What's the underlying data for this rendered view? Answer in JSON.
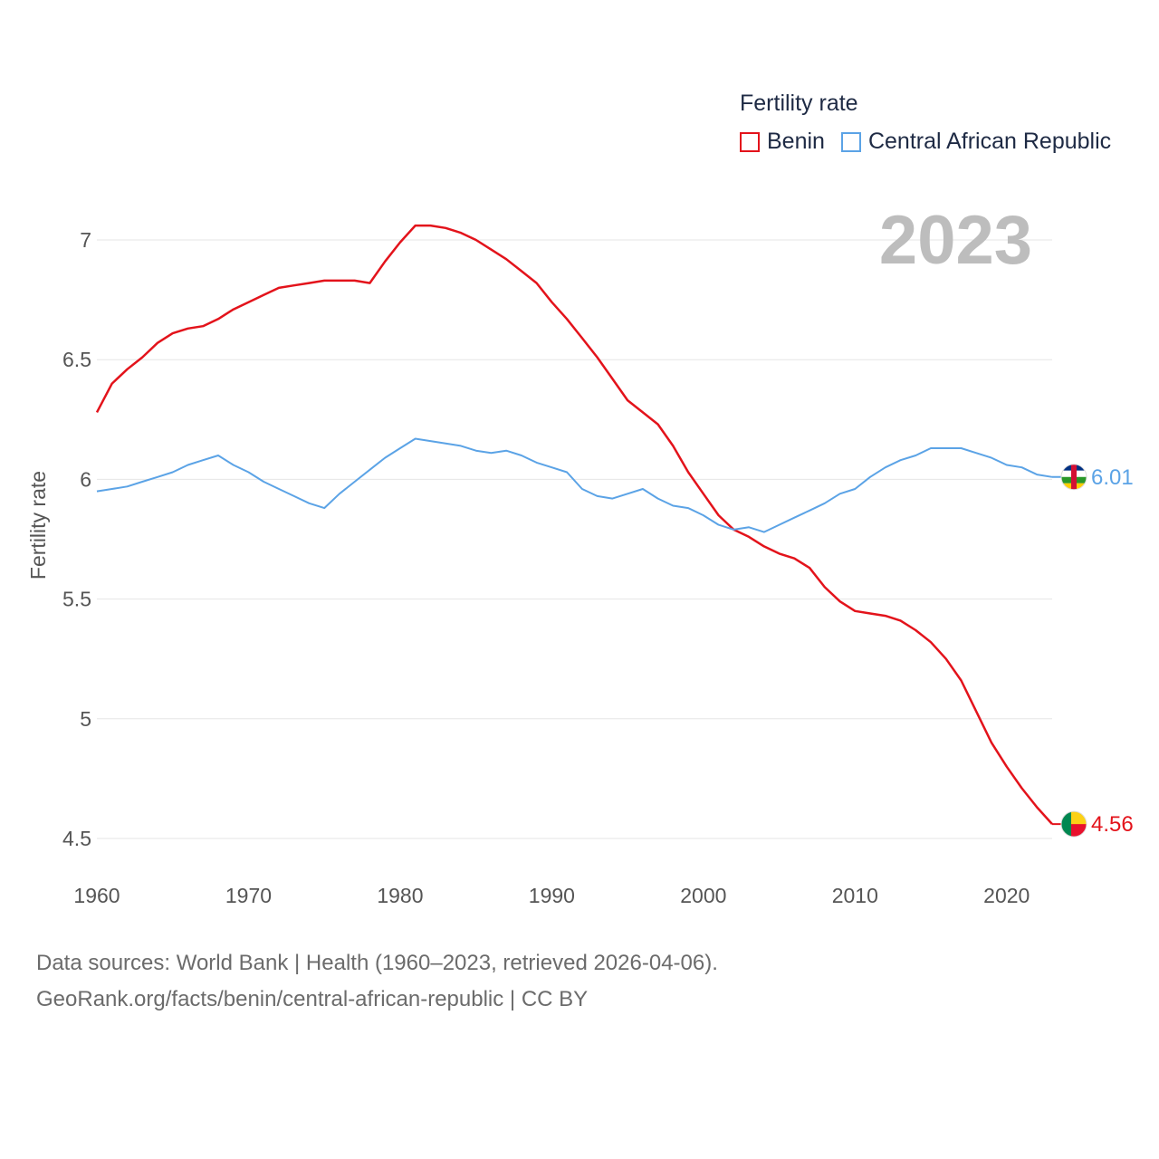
{
  "legend": {
    "title": "Fertility rate",
    "items": [
      {
        "label": "Benin",
        "color": "#e3131b"
      },
      {
        "label": "Central African Republic",
        "color": "#5ba3e6"
      }
    ]
  },
  "year_badge": "2023",
  "source": {
    "line1": "Data sources: World Bank | Health (1960–2023, retrieved 2026-04-06).",
    "line2": "GeoRank.org/facts/benin/central-african-republic | CC BY"
  },
  "chart_data": {
    "type": "line",
    "title": "Fertility rate",
    "xlabel": "",
    "ylabel": "Fertility rate",
    "xlim": [
      1960,
      2023
    ],
    "ylim": [
      4.45,
      7.2
    ],
    "x_ticks": [
      1960,
      1970,
      1980,
      1990,
      2000,
      2010,
      2020
    ],
    "y_ticks": [
      4.5,
      5,
      5.5,
      6,
      6.5,
      7
    ],
    "y_tick_labels": [
      "4.5",
      "5",
      "5.5",
      "6",
      "6.5",
      "7"
    ],
    "grid": true,
    "legend_position": "top-right",
    "x": [
      1960,
      1961,
      1962,
      1963,
      1964,
      1965,
      1966,
      1967,
      1968,
      1969,
      1970,
      1971,
      1972,
      1973,
      1974,
      1975,
      1976,
      1977,
      1978,
      1979,
      1980,
      1981,
      1982,
      1983,
      1984,
      1985,
      1986,
      1987,
      1988,
      1989,
      1990,
      1991,
      1992,
      1993,
      1994,
      1995,
      1996,
      1997,
      1998,
      1999,
      2000,
      2001,
      2002,
      2003,
      2004,
      2005,
      2006,
      2007,
      2008,
      2009,
      2010,
      2011,
      2012,
      2013,
      2014,
      2015,
      2016,
      2017,
      2018,
      2019,
      2020,
      2021,
      2022,
      2023
    ],
    "series": [
      {
        "name": "Benin",
        "color": "#e3131b",
        "end_label": "4.56",
        "values": [
          6.28,
          6.4,
          6.46,
          6.51,
          6.57,
          6.61,
          6.63,
          6.64,
          6.67,
          6.71,
          6.74,
          6.77,
          6.8,
          6.81,
          6.82,
          6.83,
          6.83,
          6.83,
          6.82,
          6.91,
          6.99,
          7.06,
          7.06,
          7.05,
          7.03,
          7.0,
          6.96,
          6.92,
          6.87,
          6.82,
          6.74,
          6.67,
          6.59,
          6.51,
          6.42,
          6.33,
          6.28,
          6.23,
          6.14,
          6.03,
          5.94,
          5.85,
          5.79,
          5.76,
          5.72,
          5.69,
          5.67,
          5.63,
          5.55,
          5.49,
          5.45,
          5.44,
          5.43,
          5.41,
          5.37,
          5.32,
          5.25,
          5.16,
          5.03,
          4.9,
          4.8,
          4.71,
          4.63,
          4.56
        ]
      },
      {
        "name": "Central African Republic",
        "color": "#5ba3e6",
        "end_label": "6.01",
        "values": [
          5.95,
          5.96,
          5.97,
          5.99,
          6.01,
          6.03,
          6.06,
          6.08,
          6.1,
          6.06,
          6.03,
          5.99,
          5.96,
          5.93,
          5.9,
          5.88,
          5.94,
          5.99,
          6.04,
          6.09,
          6.13,
          6.17,
          6.16,
          6.15,
          6.14,
          6.12,
          6.11,
          6.12,
          6.1,
          6.07,
          6.05,
          6.03,
          5.96,
          5.93,
          5.92,
          5.94,
          5.96,
          5.92,
          5.89,
          5.88,
          5.85,
          5.81,
          5.79,
          5.8,
          5.78,
          5.81,
          5.84,
          5.87,
          5.9,
          5.94,
          5.96,
          6.01,
          6.05,
          6.08,
          6.1,
          6.13,
          6.13,
          6.13,
          6.11,
          6.09,
          6.06,
          6.05,
          6.02,
          6.01
        ]
      }
    ]
  }
}
